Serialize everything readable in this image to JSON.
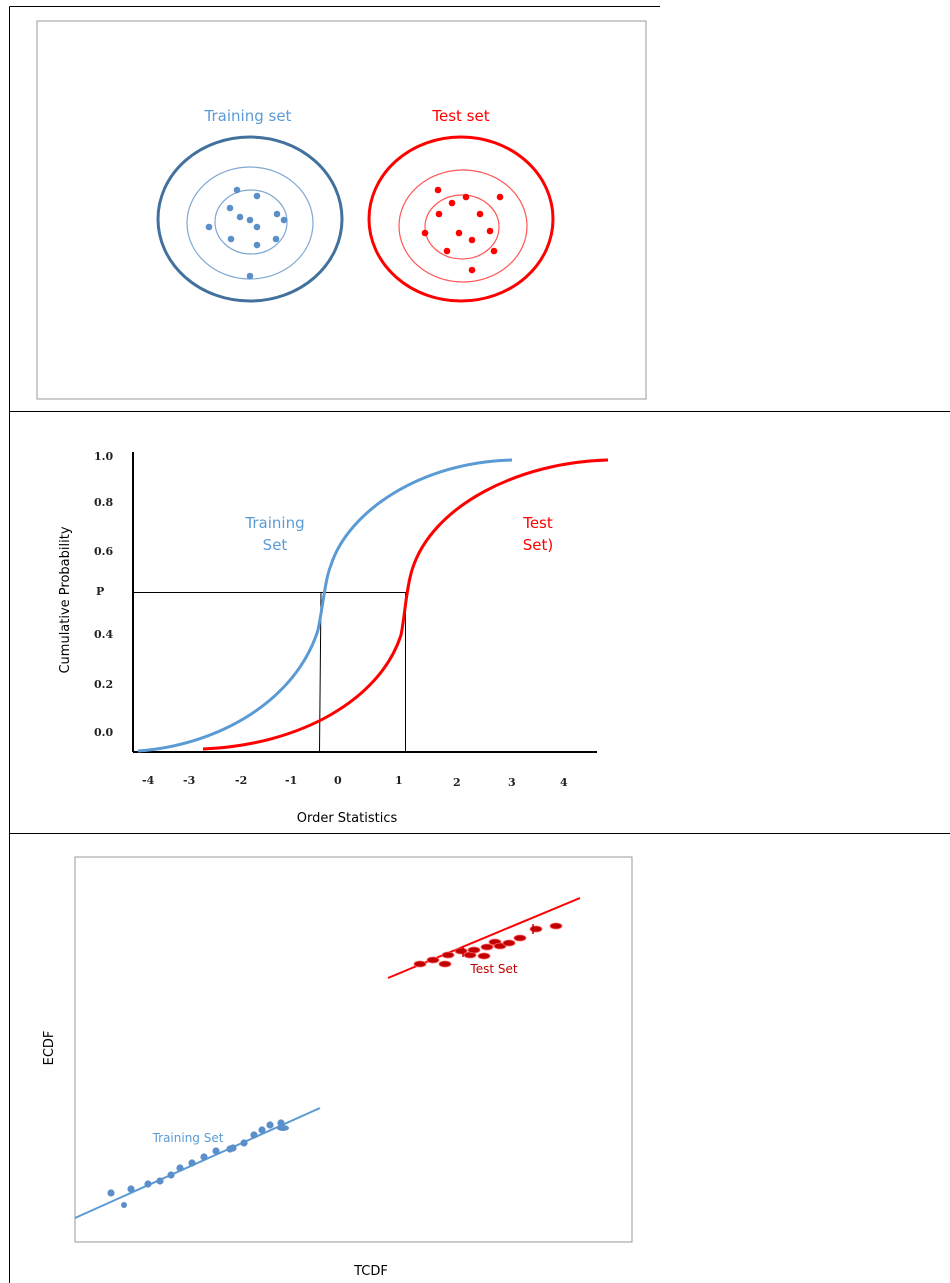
{
  "panels": [
    {
      "training_label": "Training set",
      "test_label": "Test set"
    },
    {
      "y_axis_label": "Cumulative Probability",
      "x_axis_label": "Order Statistics",
      "y_ticks": [
        "1.0",
        "0.8",
        "0.6",
        "P",
        "0.4",
        "0.2",
        "0.0"
      ],
      "x_ticks": [
        "-4",
        "-3",
        "-2",
        "-1",
        "0",
        "1",
        "2",
        "3",
        "4"
      ],
      "training_label_line1": "Training",
      "training_label_line2": "Set",
      "test_label_line1": "Test",
      "test_label_line2": "Set)"
    },
    {
      "y_axis_label": "ECDF",
      "x_axis_label": "TCDF",
      "training_label": "Training Set",
      "test_label": "Test Set"
    }
  ],
  "colors": {
    "training_dark": "#41719c",
    "training": "#5b9bd5",
    "test": "#ff0000",
    "test_dot": "#c00000"
  }
}
